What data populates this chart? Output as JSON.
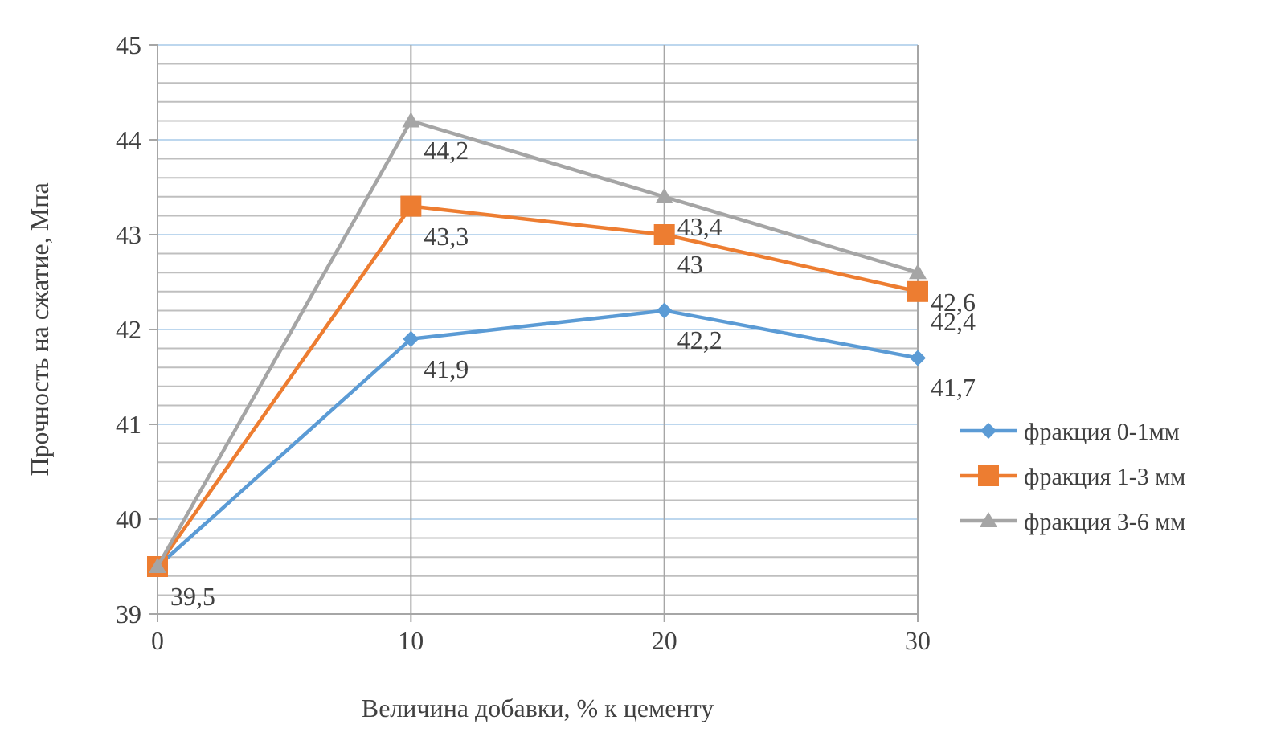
{
  "chart_data": {
    "type": "line",
    "xlabel": "Величина добавки, % к  цементу",
    "ylabel": "Прочность на сжатие, Мпа",
    "x": [
      0,
      10,
      20,
      30
    ],
    "xlim": [
      0,
      30
    ],
    "xticks": [
      0,
      10,
      20,
      30
    ],
    "ylim": [
      39,
      45
    ],
    "yticks": [
      39,
      {
        "value": 39.2,
        "label": null
      },
      {
        "value": 39.4,
        "label": null
      },
      {
        "value": 39.6,
        "label": null
      },
      {
        "value": 39.8,
        "label": null
      },
      40,
      {
        "value": 40.2,
        "label": null
      },
      {
        "value": 40.4,
        "label": null
      },
      {
        "value": 40.6,
        "label": null
      },
      {
        "value": 40.8,
        "label": null
      },
      41,
      {
        "value": 41.2,
        "label": null
      },
      {
        "value": 41.4,
        "label": null
      },
      {
        "value": 41.6,
        "label": null
      },
      {
        "value": 41.8,
        "label": null
      },
      42,
      {
        "value": 42.2,
        "label": null
      },
      {
        "value": 42.4,
        "label": null
      },
      {
        "value": 42.6,
        "label": null
      },
      {
        "value": 42.8,
        "label": null
      },
      43,
      {
        "value": 43.2,
        "label": null
      },
      {
        "value": 43.4,
        "label": null
      },
      {
        "value": 43.6,
        "label": null
      },
      {
        "value": 43.8,
        "label": null
      },
      44,
      {
        "value": 44.2,
        "label": null
      },
      {
        "value": 44.4,
        "label": null
      },
      {
        "value": 44.6,
        "label": null
      },
      {
        "value": 44.8,
        "label": null
      },
      45
    ],
    "grid": true,
    "legend": "right",
    "series": [
      {
        "name": "фракция 0-1мм",
        "color": "#5b9bd5",
        "marker": "diamond",
        "values": [
          39.5,
          41.9,
          42.2,
          41.7
        ],
        "value_labels": [
          "39,5",
          "41,9",
          "42,2",
          "41,7"
        ]
      },
      {
        "name": "фракция 1-3 мм",
        "color": "#ed7d31",
        "marker": "square",
        "values": [
          39.5,
          43.3,
          43,
          42.4
        ],
        "value_labels": [
          null,
          "43,3",
          "43",
          "42,4"
        ]
      },
      {
        "name": "фракция 3-6 мм",
        "color": "#a5a5a5",
        "marker": "triangle",
        "values": [
          39.5,
          44.2,
          43.4,
          42.6
        ],
        "value_labels": [
          null,
          "44,2",
          "43,4",
          "42,6"
        ]
      }
    ]
  }
}
